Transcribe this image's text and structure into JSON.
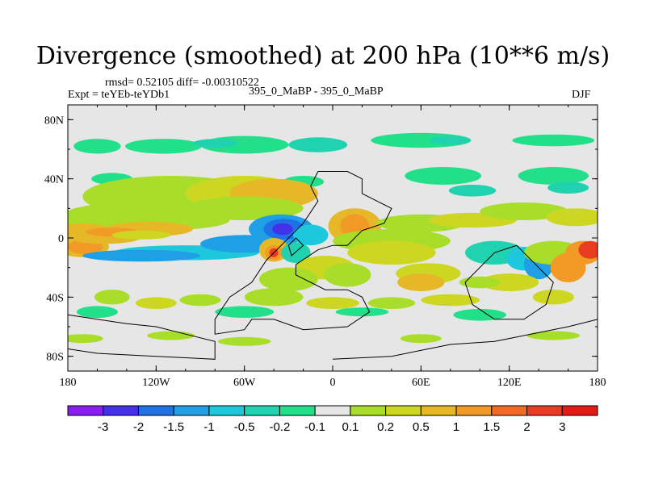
{
  "header": {
    "title": "Divergence (smoothed) at 200 hPa (10**6 m/s)",
    "stats": "rmsd= 0.52105 diff= -0.00310522",
    "expt": "Expt = teYEb-teYDb1",
    "center": "395_0_MaBP - 395_0_MaBP",
    "season": "DJF"
  },
  "chart_data": {
    "type": "heatmap",
    "title": "Divergence (smoothed) at 200 hPa (10**6 m/s)",
    "x_ticks": [
      "180",
      "120W",
      "60W",
      "0",
      "60E",
      "120E",
      "180"
    ],
    "y_ticks": [
      "80N",
      "40N",
      "0",
      "40S",
      "80S"
    ],
    "xlim": [
      -180,
      180
    ],
    "ylim": [
      -90,
      90
    ],
    "colorbar": {
      "labels": [
        "-3",
        "-2",
        "-1.5",
        "-1",
        "-0.5",
        "-0.2",
        "-0.1",
        "0.1",
        "0.2",
        "0.5",
        "1",
        "1.5",
        "2",
        "3"
      ],
      "colors": [
        "#8a1ef0",
        "#4430e8",
        "#1e72e6",
        "#1fa0e6",
        "#1ec8dc",
        "#20d2b0",
        "#22e08a",
        "#e6e6e6",
        "#a8de2a",
        "#cdd620",
        "#e6b828",
        "#f29a26",
        "#f26a22",
        "#e83c20",
        "#e01c14"
      ]
    },
    "background_color": "#e6e6e6"
  }
}
